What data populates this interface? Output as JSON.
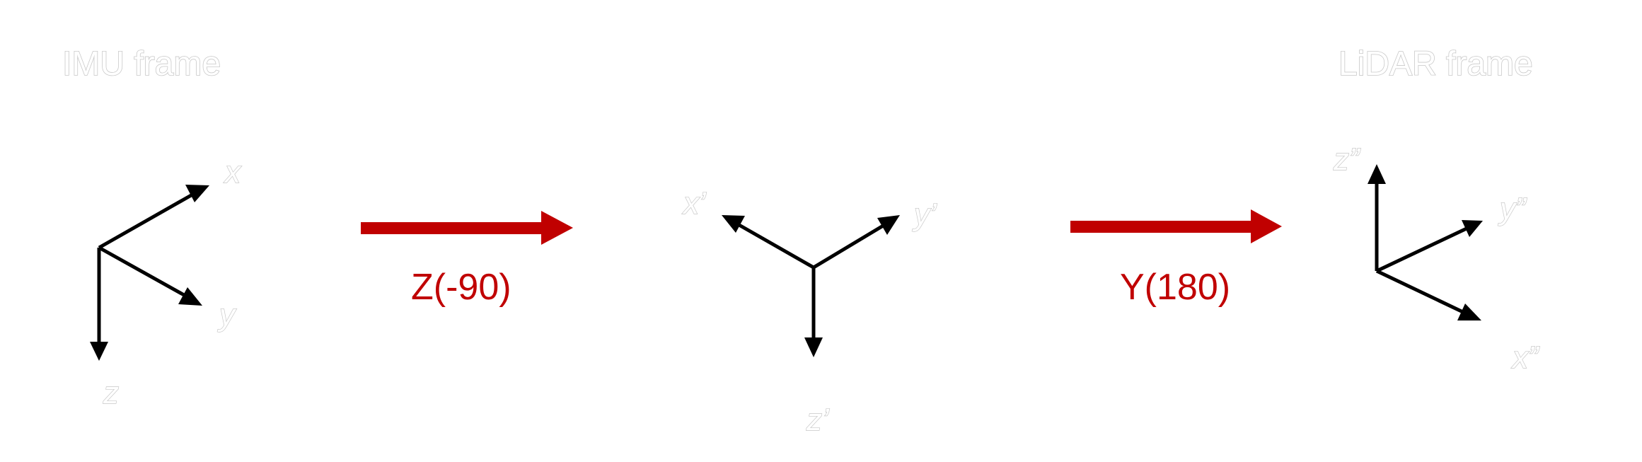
{
  "frames": {
    "imu": {
      "title": "IMU frame",
      "axes": {
        "x": "x",
        "y": "y",
        "z": "z"
      }
    },
    "intermediate": {
      "axes": {
        "x": "x’",
        "y": "y’",
        "z": "z’"
      }
    },
    "lidar": {
      "title": "LiDAR frame",
      "axes": {
        "x": "x”",
        "y": "y”",
        "z": "z”"
      }
    }
  },
  "rotations": [
    {
      "label": "Z(-90)"
    },
    {
      "label": "Y(180)"
    }
  ],
  "colors": {
    "rotation_arrow": "#c00000",
    "axis": "#000000",
    "label_outline": "#c8c8c8"
  }
}
